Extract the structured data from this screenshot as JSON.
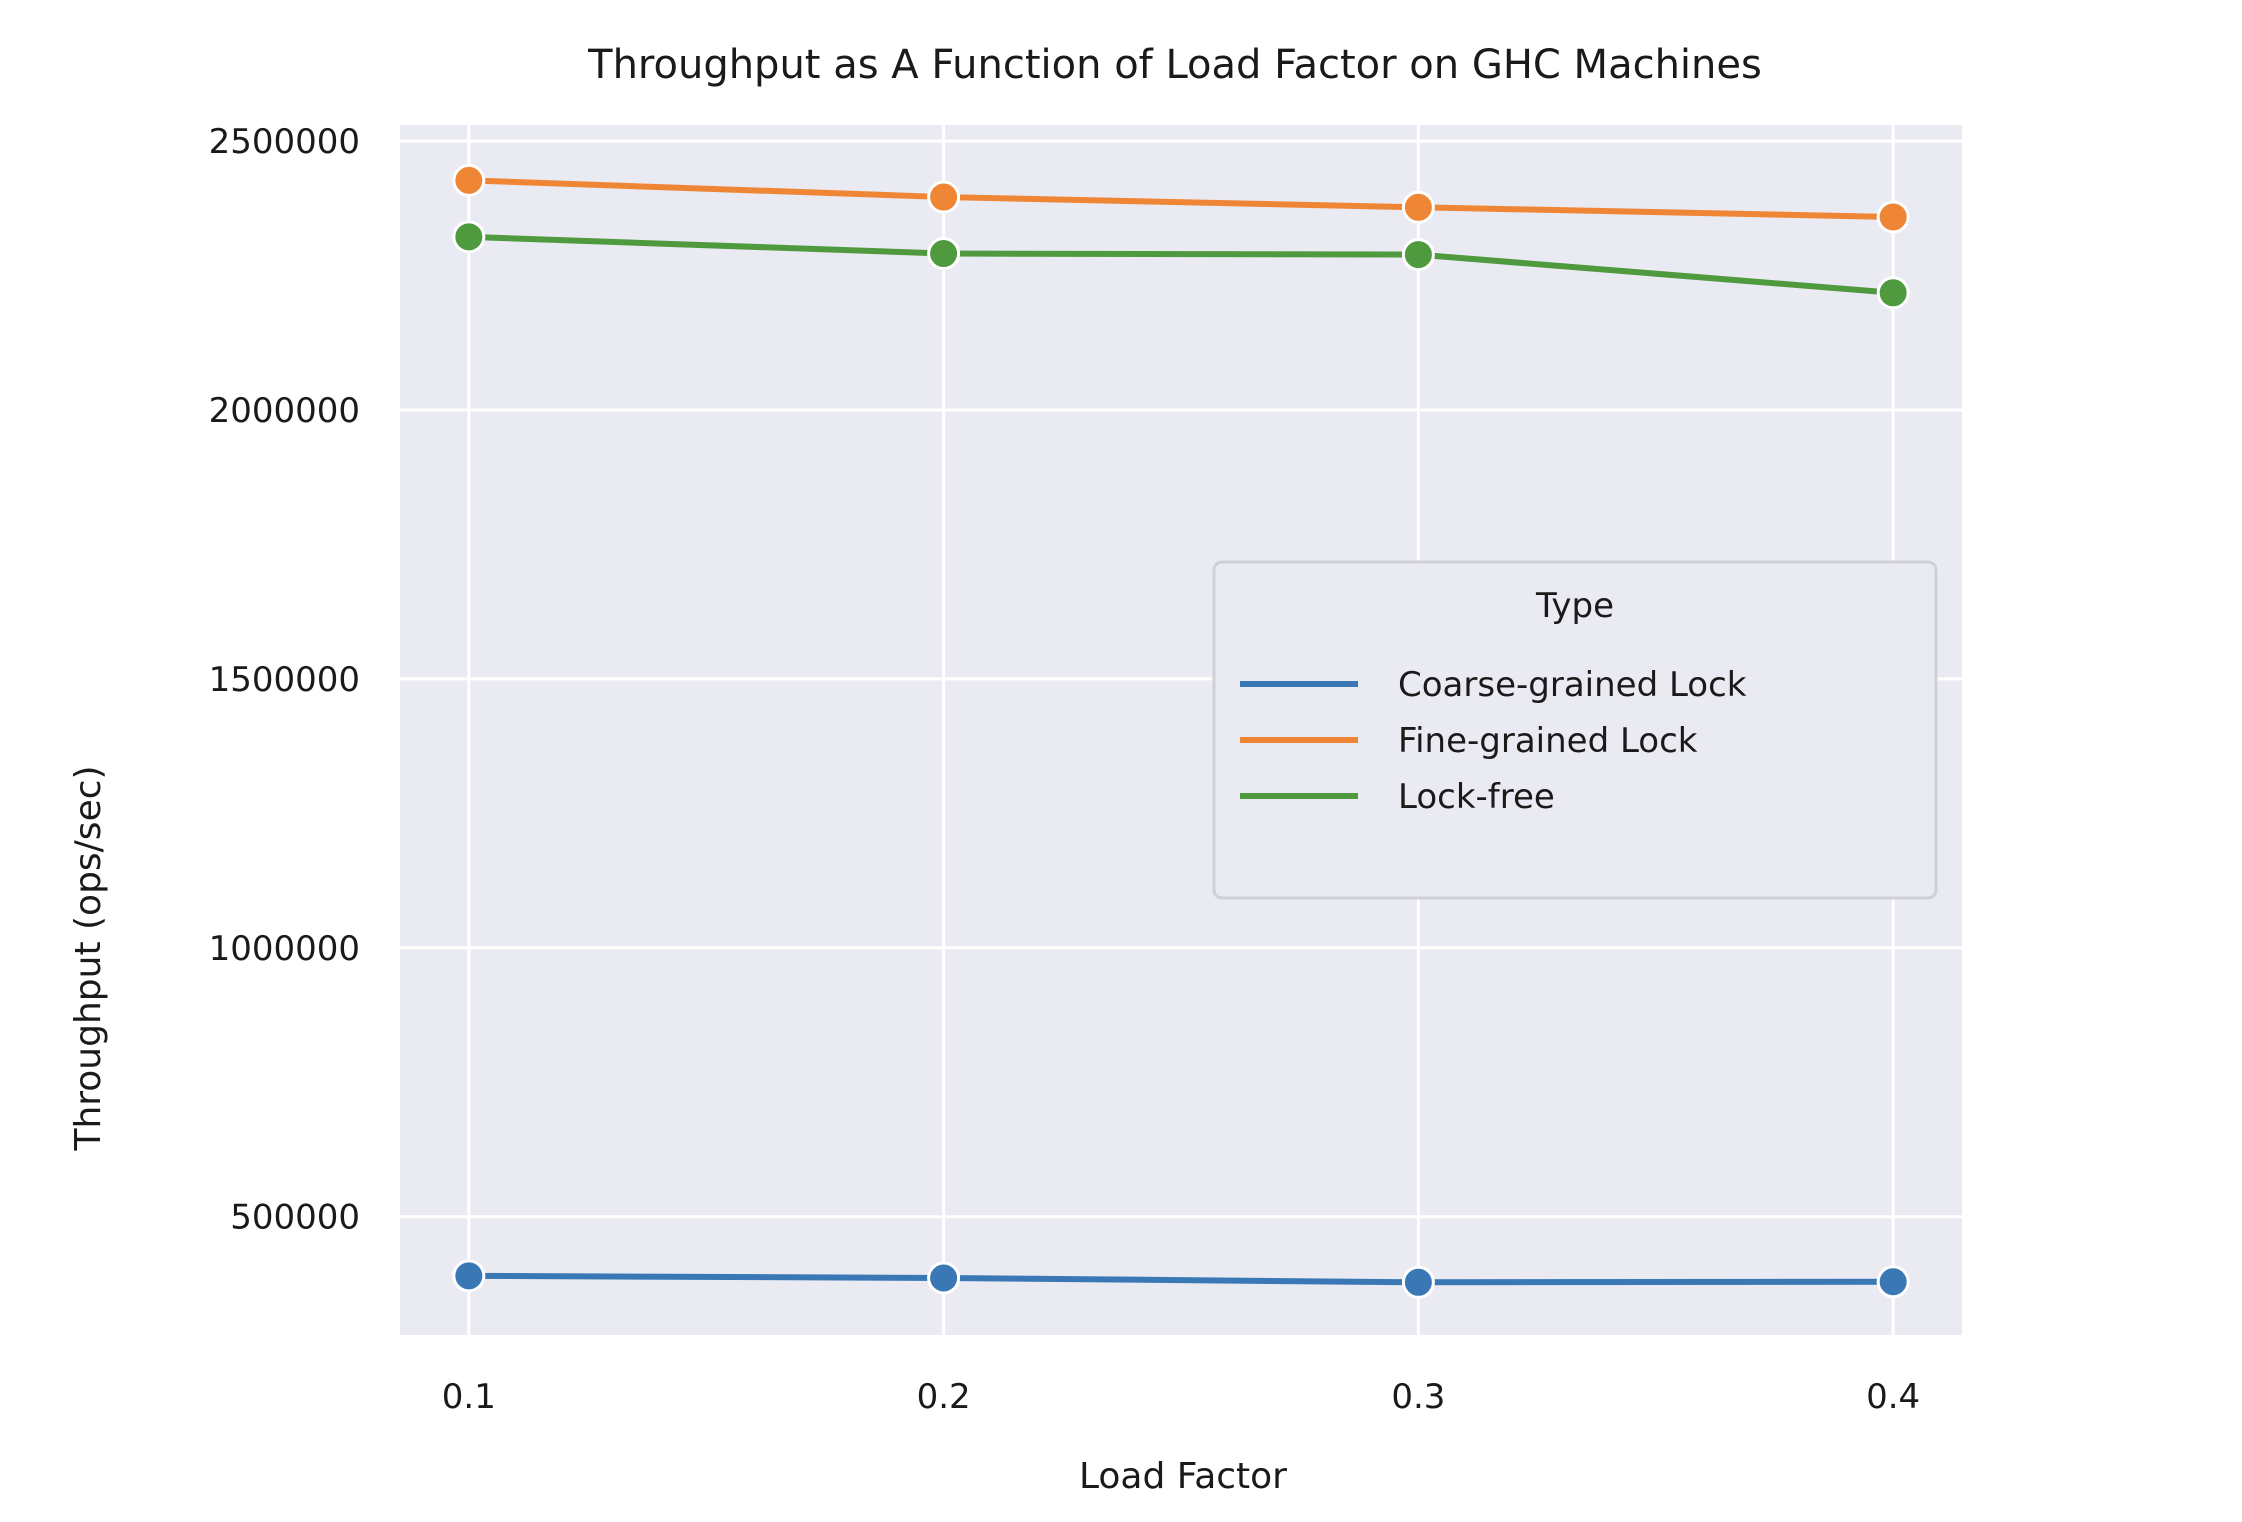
{
  "chart_data": {
    "type": "line",
    "title": "Throughput as A Function of Load Factor on GHC Machines",
    "xlabel": "Load Factor",
    "ylabel": "Throughput (ops/sec)",
    "x": [
      0.1,
      0.2,
      0.3,
      0.4
    ],
    "x_tick_labels": [
      "0.1",
      "0.2",
      "0.3",
      "0.4"
    ],
    "y_ticks": [
      500000,
      1000000,
      1500000,
      2000000,
      2500000
    ],
    "y_tick_labels": [
      "500000",
      "1000000",
      "1500000",
      "2000000",
      "2500000"
    ],
    "xlim": [
      0.0855,
      0.4145
    ],
    "ylim": [
      280000,
      2530000
    ],
    "grid": true,
    "legend": {
      "title": "Type",
      "placement": "center-right"
    },
    "series": [
      {
        "name": "Coarse-grained Lock",
        "color": "#3a78b5",
        "values": [
          390000,
          386000,
          378000,
          379000
        ]
      },
      {
        "name": "Fine-grained Lock",
        "color": "#ef8636",
        "values": [
          2427000,
          2396000,
          2377000,
          2359000
        ]
      },
      {
        "name": "Lock-free",
        "color": "#4f9a3e",
        "values": [
          2322000,
          2291000,
          2289000,
          2218000
        ]
      }
    ]
  }
}
